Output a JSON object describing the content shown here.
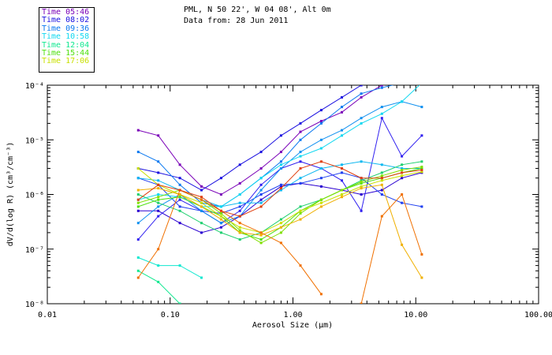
{
  "header": {
    "location": "PML, N 50 22', W 04 08', Alt 0m",
    "date": "Data from: 28 Jun 2011"
  },
  "legend": [
    {
      "label": "Time 05:46",
      "color": "#7a00b8"
    },
    {
      "label": "Time 08:02",
      "color": "#1a10e0"
    },
    {
      "label": "Time 09:36",
      "color": "#0a78f0"
    },
    {
      "label": "Time 10:58",
      "color": "#10d8f0"
    },
    {
      "label": "Time 12:04",
      "color": "#10e890"
    },
    {
      "label": "Time 15:44",
      "color": "#50e010"
    },
    {
      "label": "Time 17:06",
      "color": "#c8e000"
    }
  ],
  "chart_data": {
    "type": "line",
    "title": "",
    "xlabel": "Aerosol Size (μm)",
    "ylabel": "dV/d(log R) (cm³/cm⁻³)",
    "x_scale": "log",
    "y_scale": "log",
    "xlim": [
      0.01,
      100
    ],
    "ylim": [
      1e-08,
      0.0001
    ],
    "x_ticks": [
      0.01,
      0.1,
      1,
      10,
      100
    ],
    "x_tick_labels": [
      "0.01",
      "0.10",
      "1.00",
      "10.00",
      "100.00"
    ],
    "y_ticks": [
      1e-08,
      1e-07,
      1e-06,
      1e-05,
      0.0001
    ],
    "y_tick_labels": [
      "10⁻⁸",
      "10⁻⁷",
      "10⁻⁶",
      "10⁻⁵",
      "10⁻⁴"
    ],
    "grid": false,
    "legend_position": "top-left, outside plot",
    "x": [
      0.055,
      0.08,
      0.12,
      0.18,
      0.26,
      0.37,
      0.55,
      0.8,
      1.15,
      1.7,
      2.5,
      3.6,
      5.3,
      7.7,
      11.2
    ],
    "series": [
      {
        "color": "#7a00b8",
        "values": [
          1.5e-05,
          1.2e-05,
          3.5e-06,
          1.4e-06,
          1e-06,
          1.6e-06,
          3e-06,
          6e-06,
          1.4e-05,
          2.2e-05,
          3.2e-05,
          6e-05,
          0.0001,
          0.00011,
          0.00011
        ]
      },
      {
        "color": "#2a00d0",
        "values": [
          5e-07,
          5e-07,
          3e-07,
          2e-07,
          2.5e-07,
          4e-07,
          8e-07,
          1.4e-06,
          1.6e-06,
          1.4e-06,
          1.2e-06,
          1e-06,
          1.2e-06,
          2e-06,
          2.5e-06
        ]
      },
      {
        "color": "#1a10e0",
        "values": [
          3e-06,
          2.5e-06,
          2e-06,
          1.2e-06,
          2e-06,
          3.5e-06,
          6e-06,
          1.2e-05,
          2e-05,
          3.5e-05,
          6e-05,
          0.0001,
          0.00011,
          0.00011,
          0.00011
        ]
      },
      {
        "color": "#3020f0",
        "values": [
          1.5e-07,
          4e-07,
          8e-07,
          5e-07,
          3e-07,
          5e-07,
          1.5e-06,
          3e-06,
          4e-06,
          3e-06,
          1.8e-06,
          5e-07,
          2.5e-05,
          5e-06,
          1.2e-05
        ]
      },
      {
        "color": "#2040f0",
        "values": [
          2e-06,
          1.5e-06,
          6e-07,
          5e-07,
          4.5e-07,
          6e-07,
          1e-06,
          1.5e-06,
          1.6e-06,
          2e-06,
          2.5e-06,
          2e-06,
          1e-06,
          7e-07,
          6e-07
        ]
      },
      {
        "color": "#0a78f0",
        "values": [
          6e-06,
          4e-06,
          1.5e-06,
          7e-07,
          6e-07,
          1e-06,
          2e-06,
          4e-06,
          1e-05,
          2e-05,
          4e-05,
          7e-05,
          9e-05,
          0.00011,
          0.00011
        ]
      },
      {
        "color": "#1090f0",
        "values": [
          3e-07,
          6e-07,
          1e-06,
          5e-07,
          3e-07,
          4e-07,
          1.2e-06,
          3e-06,
          6e-06,
          1e-05,
          1.5e-05,
          2.5e-05,
          4e-05,
          5e-05,
          4e-05
        ]
      },
      {
        "color": "#10b8f0",
        "values": [
          2e-06,
          1.8e-06,
          1.2e-06,
          8e-07,
          6e-07,
          7e-07,
          7e-07,
          1.2e-06,
          2e-06,
          3e-06,
          3.5e-06,
          4e-06,
          3.5e-06,
          3e-06,
          3e-06
        ]
      },
      {
        "color": "#10d8f0",
        "values": [
          8e-07,
          1e-06,
          9e-07,
          6e-07,
          6e-07,
          1e-06,
          2e-06,
          3.5e-06,
          5e-06,
          7e-06,
          1.2e-05,
          2e-05,
          3e-05,
          5e-05,
          0.00011
        ]
      },
      {
        "color": "#10e8d0",
        "values": [
          7e-08,
          5e-08,
          5e-08,
          3e-08,
          null,
          null,
          null,
          null,
          null,
          null,
          null,
          null,
          null,
          null,
          null
        ]
      },
      {
        "color": "#10e890",
        "values": [
          4e-08,
          2.5e-08,
          1e-08,
          null,
          null,
          null,
          null,
          null,
          null,
          null,
          null,
          null,
          null,
          null,
          null
        ]
      },
      {
        "color": "#20d070",
        "values": [
          1e-06,
          7e-07,
          5e-07,
          3e-07,
          2e-07,
          1.5e-07,
          2e-07,
          3.5e-07,
          6e-07,
          8e-07,
          1.2e-06,
          1.8e-06,
          2.5e-06,
          3.5e-06,
          4e-06
        ]
      },
      {
        "color": "#50e010",
        "values": [
          6e-07,
          8e-07,
          9e-07,
          6e-07,
          4e-07,
          2e-07,
          1.5e-07,
          2.5e-07,
          5e-07,
          8e-07,
          1.2e-06,
          1.6e-06,
          2e-06,
          2.5e-06,
          3e-06
        ]
      },
      {
        "color": "#80e000",
        "values": [
          7e-07,
          9e-07,
          1.2e-06,
          8e-07,
          4.5e-07,
          2.2e-07,
          1.3e-07,
          2e-07,
          4.5e-07,
          8e-07,
          1.2e-06,
          1.7e-06,
          2.2e-06,
          2.8e-06,
          3.2e-06
        ]
      },
      {
        "color": "#c8e000",
        "values": [
          3e-06,
          1.5e-06,
          1e-06,
          7e-07,
          4e-07,
          2.5e-07,
          2e-07,
          3e-07,
          5e-07,
          7e-07,
          1e-06,
          1.4e-06,
          1.8e-06,
          2.2e-06,
          2.6e-06
        ]
      },
      {
        "color": "#f0b000",
        "values": [
          1.2e-06,
          1.3e-06,
          1e-06,
          6e-07,
          3.5e-07,
          2e-07,
          1.8e-07,
          2.5e-07,
          3.5e-07,
          6e-07,
          9e-07,
          1.3e-06,
          1.5e-06,
          1.2e-07,
          3e-08
        ]
      },
      {
        "color": "#f07000",
        "values": [
          3e-08,
          1e-07,
          1.2e-06,
          8e-07,
          5e-07,
          3e-07,
          2e-07,
          1.3e-07,
          5e-08,
          1.5e-08,
          null,
          1e-08,
          4e-07,
          1e-06,
          8e-08
        ]
      },
      {
        "color": "#e04010",
        "values": [
          8e-07,
          1.5e-06,
          1.2e-06,
          9e-07,
          5e-07,
          4e-07,
          6e-07,
          1.3e-06,
          3e-06,
          4e-06,
          3e-06,
          2e-06,
          2e-06,
          2.5e-06,
          2.8e-06
        ]
      }
    ]
  }
}
